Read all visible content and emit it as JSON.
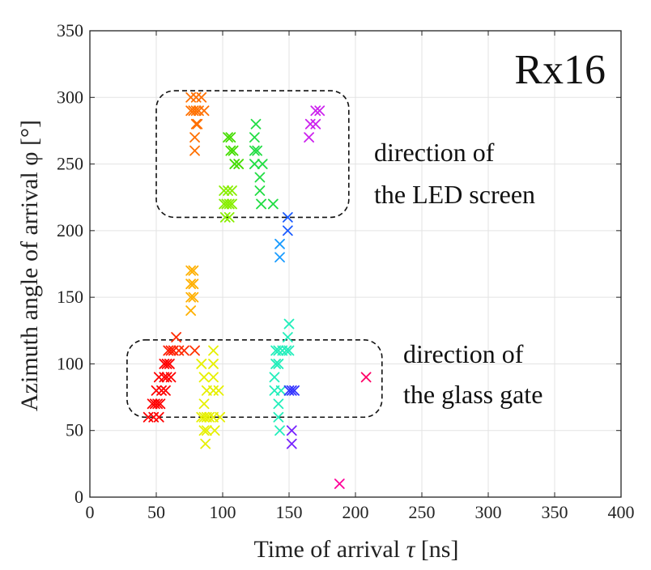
{
  "chart_data": {
    "type": "scatter",
    "title": "",
    "panel_label": "Rx16",
    "xlabel": "Time of arrival",
    "xlabel_symbol": "τ",
    "xlabel_unit": "[ns]",
    "ylabel": "Azimuth angle of arrival φ [°]",
    "xlim": [
      0,
      400
    ],
    "ylim": [
      0,
      350
    ],
    "x_ticks": [
      0,
      50,
      100,
      150,
      200,
      250,
      300,
      350,
      400
    ],
    "y_ticks": [
      0,
      50,
      100,
      150,
      200,
      250,
      300,
      350
    ],
    "grid": true,
    "marker": "x",
    "annotations": [
      {
        "id": "led",
        "lines": [
          "direction of",
          "the LED screen"
        ],
        "box": {
          "x": [
            50,
            195
          ],
          "y": [
            210,
            305
          ]
        }
      },
      {
        "id": "glass",
        "lines": [
          "direction of",
          "the glass gate"
        ],
        "box": {
          "x": [
            28,
            220
          ],
          "y": [
            60,
            118
          ]
        }
      }
    ],
    "points": [
      {
        "x": 44,
        "y": 60,
        "color": "#ff0000"
      },
      {
        "x": 48,
        "y": 60,
        "color": "#ff0000"
      },
      {
        "x": 52,
        "y": 60,
        "color": "#ff0000"
      },
      {
        "x": 47,
        "y": 70,
        "color": "#ff0000"
      },
      {
        "x": 49,
        "y": 70,
        "color": "#ff0000"
      },
      {
        "x": 51,
        "y": 70,
        "color": "#ff0000"
      },
      {
        "x": 53,
        "y": 70,
        "color": "#ff0000"
      },
      {
        "x": 50,
        "y": 80,
        "color": "#ff0000"
      },
      {
        "x": 54,
        "y": 80,
        "color": "#ff0000"
      },
      {
        "x": 52,
        "y": 90,
        "color": "#ff0000"
      },
      {
        "x": 56,
        "y": 90,
        "color": "#ff0000"
      },
      {
        "x": 58,
        "y": 90,
        "color": "#ff0000"
      },
      {
        "x": 61,
        "y": 90,
        "color": "#ff0000"
      },
      {
        "x": 56,
        "y": 100,
        "color": "#ff0000"
      },
      {
        "x": 58,
        "y": 100,
        "color": "#ff0000"
      },
      {
        "x": 60,
        "y": 100,
        "color": "#ff0000"
      },
      {
        "x": 57,
        "y": 80,
        "color": "#ff0000"
      },
      {
        "x": 59,
        "y": 110,
        "color": "#ff1a00"
      },
      {
        "x": 61,
        "y": 110,
        "color": "#ff1a00"
      },
      {
        "x": 63,
        "y": 110,
        "color": "#ff1a00"
      },
      {
        "x": 67,
        "y": 110,
        "color": "#ff2a00"
      },
      {
        "x": 71,
        "y": 110,
        "color": "#ff2a00"
      },
      {
        "x": 65,
        "y": 120,
        "color": "#ff2a00"
      },
      {
        "x": 79,
        "y": 110,
        "color": "#ff3300"
      },
      {
        "x": 76,
        "y": 300,
        "color": "#ff7000"
      },
      {
        "x": 80,
        "y": 300,
        "color": "#ff7000"
      },
      {
        "x": 84,
        "y": 300,
        "color": "#ff7000"
      },
      {
        "x": 76,
        "y": 290,
        "color": "#ff7000"
      },
      {
        "x": 78,
        "y": 290,
        "color": "#ff7000"
      },
      {
        "x": 80,
        "y": 290,
        "color": "#ff7000"
      },
      {
        "x": 82,
        "y": 290,
        "color": "#ff7000"
      },
      {
        "x": 86,
        "y": 290,
        "color": "#ff7000"
      },
      {
        "x": 80,
        "y": 280,
        "color": "#ff7000"
      },
      {
        "x": 81,
        "y": 280,
        "color": "#ff7000"
      },
      {
        "x": 79,
        "y": 270,
        "color": "#ff7000"
      },
      {
        "x": 79,
        "y": 260,
        "color": "#ff7000"
      },
      {
        "x": 76,
        "y": 170,
        "color": "#ffb000"
      },
      {
        "x": 78,
        "y": 170,
        "color": "#ffb000"
      },
      {
        "x": 76,
        "y": 160,
        "color": "#ffb000"
      },
      {
        "x": 78,
        "y": 160,
        "color": "#ffb000"
      },
      {
        "x": 76,
        "y": 150,
        "color": "#ffb000"
      },
      {
        "x": 78,
        "y": 150,
        "color": "#ffb000"
      },
      {
        "x": 76,
        "y": 140,
        "color": "#ffb000"
      },
      {
        "x": 84,
        "y": 100,
        "color": "#e6f000"
      },
      {
        "x": 86,
        "y": 90,
        "color": "#e6f000"
      },
      {
        "x": 88,
        "y": 80,
        "color": "#e6f000"
      },
      {
        "x": 86,
        "y": 70,
        "color": "#e6f000"
      },
      {
        "x": 84,
        "y": 60,
        "color": "#e6f000"
      },
      {
        "x": 86,
        "y": 60,
        "color": "#e6f000"
      },
      {
        "x": 88,
        "y": 60,
        "color": "#e6f000"
      },
      {
        "x": 90,
        "y": 60,
        "color": "#e6f000"
      },
      {
        "x": 86,
        "y": 50,
        "color": "#e6f000"
      },
      {
        "x": 88,
        "y": 50,
        "color": "#e6f000"
      },
      {
        "x": 87,
        "y": 40,
        "color": "#e6f000"
      },
      {
        "x": 93,
        "y": 110,
        "color": "#e6f000"
      },
      {
        "x": 93,
        "y": 100,
        "color": "#e6f000"
      },
      {
        "x": 93,
        "y": 90,
        "color": "#e6f000"
      },
      {
        "x": 93,
        "y": 80,
        "color": "#e6f000"
      },
      {
        "x": 97,
        "y": 80,
        "color": "#e6f000"
      },
      {
        "x": 93,
        "y": 60,
        "color": "#e6f000"
      },
      {
        "x": 98,
        "y": 60,
        "color": "#e6f000"
      },
      {
        "x": 94,
        "y": 50,
        "color": "#e6f000"
      },
      {
        "x": 101,
        "y": 230,
        "color": "#88ee00"
      },
      {
        "x": 104,
        "y": 230,
        "color": "#88ee00"
      },
      {
        "x": 107,
        "y": 230,
        "color": "#88ee00"
      },
      {
        "x": 101,
        "y": 220,
        "color": "#88ee00"
      },
      {
        "x": 103,
        "y": 220,
        "color": "#88ee00"
      },
      {
        "x": 105,
        "y": 220,
        "color": "#88ee00"
      },
      {
        "x": 107,
        "y": 220,
        "color": "#88ee00"
      },
      {
        "x": 102,
        "y": 210,
        "color": "#88ee00"
      },
      {
        "x": 105,
        "y": 210,
        "color": "#88ee00"
      },
      {
        "x": 104,
        "y": 270,
        "color": "#44dd00"
      },
      {
        "x": 106,
        "y": 270,
        "color": "#44dd00"
      },
      {
        "x": 106,
        "y": 260,
        "color": "#44dd00"
      },
      {
        "x": 108,
        "y": 260,
        "color": "#44dd00"
      },
      {
        "x": 109,
        "y": 250,
        "color": "#44dd00"
      },
      {
        "x": 112,
        "y": 250,
        "color": "#44dd00"
      },
      {
        "x": 125,
        "y": 280,
        "color": "#22dd44"
      },
      {
        "x": 124,
        "y": 270,
        "color": "#22dd44"
      },
      {
        "x": 124,
        "y": 260,
        "color": "#22dd44"
      },
      {
        "x": 126,
        "y": 260,
        "color": "#22dd44"
      },
      {
        "x": 124,
        "y": 250,
        "color": "#22dd44"
      },
      {
        "x": 130,
        "y": 250,
        "color": "#22dd44"
      },
      {
        "x": 128,
        "y": 240,
        "color": "#22dd44"
      },
      {
        "x": 128,
        "y": 230,
        "color": "#22dd44"
      },
      {
        "x": 129,
        "y": 220,
        "color": "#22dd44"
      },
      {
        "x": 138,
        "y": 220,
        "color": "#22dd44"
      },
      {
        "x": 140,
        "y": 110,
        "color": "#22eebb"
      },
      {
        "x": 142,
        "y": 110,
        "color": "#22eebb"
      },
      {
        "x": 145,
        "y": 110,
        "color": "#22eebb"
      },
      {
        "x": 148,
        "y": 110,
        "color": "#22eebb"
      },
      {
        "x": 150,
        "y": 110,
        "color": "#22eebb"
      },
      {
        "x": 149,
        "y": 120,
        "color": "#22eebb"
      },
      {
        "x": 150,
        "y": 130,
        "color": "#22eebb"
      },
      {
        "x": 140,
        "y": 100,
        "color": "#22eebb"
      },
      {
        "x": 142,
        "y": 100,
        "color": "#22eebb"
      },
      {
        "x": 139,
        "y": 90,
        "color": "#22eebb"
      },
      {
        "x": 139,
        "y": 80,
        "color": "#22eebb"
      },
      {
        "x": 144,
        "y": 80,
        "color": "#22eebb"
      },
      {
        "x": 142,
        "y": 70,
        "color": "#22eebb"
      },
      {
        "x": 142,
        "y": 60,
        "color": "#22eebb"
      },
      {
        "x": 143,
        "y": 50,
        "color": "#22eebb"
      },
      {
        "x": 143,
        "y": 190,
        "color": "#1a9cff"
      },
      {
        "x": 143,
        "y": 180,
        "color": "#1a9cff"
      },
      {
        "x": 149,
        "y": 210,
        "color": "#1a5aff"
      },
      {
        "x": 149,
        "y": 200,
        "color": "#1a5aff"
      },
      {
        "x": 150,
        "y": 80,
        "color": "#3333ff"
      },
      {
        "x": 152,
        "y": 80,
        "color": "#3333ff"
      },
      {
        "x": 154,
        "y": 80,
        "color": "#3333ff"
      },
      {
        "x": 152,
        "y": 50,
        "color": "#7722ff"
      },
      {
        "x": 152,
        "y": 40,
        "color": "#7722ff"
      },
      {
        "x": 165,
        "y": 270,
        "color": "#cc22ee"
      },
      {
        "x": 166,
        "y": 280,
        "color": "#cc22ee"
      },
      {
        "x": 170,
        "y": 280,
        "color": "#cc22ee"
      },
      {
        "x": 170,
        "y": 290,
        "color": "#cc22ee"
      },
      {
        "x": 173,
        "y": 290,
        "color": "#cc22ee"
      },
      {
        "x": 188,
        "y": 10,
        "color": "#ff0099"
      },
      {
        "x": 208,
        "y": 90,
        "color": "#ff0066"
      }
    ]
  }
}
